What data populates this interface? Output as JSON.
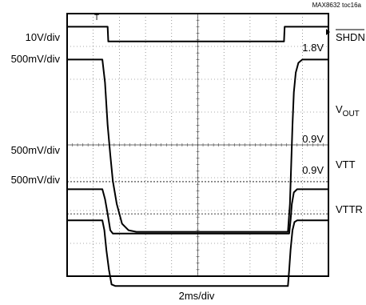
{
  "chart_data": {
    "type": "line",
    "title": "",
    "figure_id": "MAX8632 toc16a",
    "xlabel": "2ms/div",
    "ylabel": "",
    "xlim": [
      0,
      20
    ],
    "ylim": [
      0,
      8
    ],
    "grid": true,
    "x_unit": "ms",
    "y_unit": "div",
    "series": [
      {
        "name": "SHDN",
        "scale_label": "10V/div",
        "x": [
          0,
          3.1,
          3.15,
          16.6,
          16.65,
          20
        ],
        "y": [
          7.6,
          7.6,
          7.15,
          7.15,
          7.6,
          7.6
        ]
      },
      {
        "name": "VOUT",
        "scale_label": "500mV/div",
        "x": [
          0,
          2.7,
          2.9,
          3.1,
          3.3,
          3.5,
          3.8,
          4.2,
          4.7,
          5.3,
          16.9,
          17.05,
          17.15,
          17.25,
          17.35,
          17.5,
          17.7,
          18.0,
          20
        ],
        "y": [
          6.6,
          6.6,
          5.9,
          4.6,
          3.7,
          2.9,
          2.2,
          1.6,
          1.4,
          1.35,
          1.35,
          2.2,
          3.4,
          4.6,
          5.6,
          6.2,
          6.5,
          6.6,
          6.6
        ]
      },
      {
        "name": "VTT",
        "scale_label": "500mV/div",
        "x": [
          0,
          2.7,
          2.9,
          3.1,
          3.3,
          3.5,
          17.0,
          17.1,
          17.2,
          17.35,
          17.6,
          20
        ],
        "y": [
          2.65,
          2.65,
          2.35,
          1.9,
          1.4,
          1.3,
          1.3,
          1.7,
          2.2,
          2.55,
          2.65,
          2.65
        ]
      },
      {
        "name": "VTTR",
        "scale_label": "500mV/div",
        "x": [
          0,
          2.7,
          2.85,
          3.0,
          3.2,
          3.4,
          3.7,
          16.9,
          17.0,
          17.1,
          17.25,
          17.4,
          17.6,
          20
        ],
        "y": [
          1.7,
          1.7,
          1.4,
          0.8,
          0.2,
          -0.25,
          -0.3,
          -0.3,
          0.2,
          0.8,
          1.4,
          1.65,
          1.7,
          1.7
        ]
      }
    ],
    "reference_lines": [
      {
        "label": "1.8V",
        "y": 6.62
      },
      {
        "label": "0.9V",
        "y": 2.88
      },
      {
        "label": "0.9V",
        "y": 1.9
      }
    ],
    "left_labels": [
      "10V/div",
      "500mV/div",
      "500mV/div",
      "500mV/div"
    ],
    "right_labels": [
      "SHDN",
      "VOUT",
      "VTT",
      "VTTR"
    ]
  }
}
